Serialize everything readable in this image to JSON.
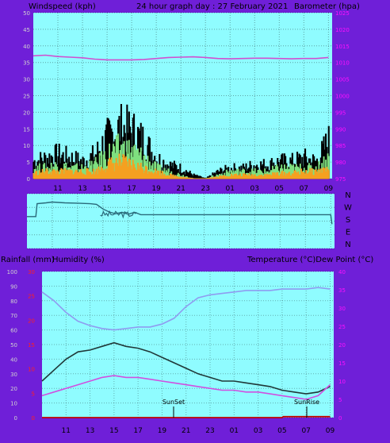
{
  "header": {
    "left_label": "Windspeed (kph)",
    "title": "24 hour graph day : 27 February 2021",
    "right_label": "Barometer (hpa)"
  },
  "bottom_header": {
    "left_label_1": "Rainfall (mm)",
    "left_label_2": "Humidity (%)",
    "right_label": "Temperature (°C)Dew Point (°C)"
  },
  "colors": {
    "background": "#6f1fd8",
    "plot": "#8ffcff",
    "wind_black": "#000000",
    "wind_green": "#7fe07f",
    "wind_orange": "#f5a020",
    "barometer": "#d050d0",
    "direction": "#2a6a7a",
    "humidity": "#8f9cf0",
    "temperature": "#203838",
    "dewpoint": "#d050e0",
    "rain": "#c00000",
    "left_tick": "#d0d0d0",
    "right_tick": "#ff10ff",
    "red_tick": "#ff2020"
  },
  "chart_data": [
    {
      "type": "line",
      "name_hint": "wind-and-barometer",
      "x_ticks": [
        "11",
        "13",
        "15",
        "17",
        "19",
        "21",
        "23",
        "01",
        "03",
        "05",
        "07",
        "09"
      ],
      "left_axis": {
        "label": "Windspeed (kph)",
        "ticks": [
          "0",
          "5",
          "10",
          "15",
          "20",
          "25",
          "30",
          "35",
          "40",
          "45",
          "50"
        ],
        "ylim": [
          0,
          50
        ]
      },
      "right_axis": {
        "label": "Barometer (hpa)",
        "ticks": [
          "975",
          "980",
          "985",
          "990",
          "995",
          "1000",
          "1005",
          "1010",
          "1015",
          "1020",
          "1025"
        ],
        "ylim": [
          975,
          1025
        ]
      },
      "series": [
        {
          "axis": "right",
          "x": [
            9,
            10,
            11,
            12,
            13,
            14,
            15,
            16,
            17,
            18,
            19,
            20,
            21,
            22,
            23,
            24,
            25,
            26,
            27,
            28,
            29,
            30,
            31,
            32,
            33
          ],
          "values": [
            1012,
            1012.2,
            1011.8,
            1011.6,
            1011.4,
            1011,
            1010.8,
            1010.8,
            1010.8,
            1010.9,
            1011.2,
            1011.5,
            1011.6,
            1011.7,
            1011.5,
            1011.2,
            1011.1,
            1011.2,
            1011.3,
            1011.3,
            1011.2,
            1011.1,
            1011.2,
            1011.2,
            1011.5
          ]
        },
        {
          "axis": "left",
          "x": [
            9,
            10,
            11,
            12,
            13,
            14,
            15,
            16,
            17,
            18,
            19,
            20,
            21,
            22,
            23,
            24,
            25,
            26,
            27,
            28,
            29,
            30,
            31,
            32,
            33
          ],
          "values": [
            5,
            6,
            7,
            6,
            5,
            7,
            12,
            15,
            14,
            11,
            6,
            4,
            3,
            1,
            0,
            2,
            3,
            3,
            4,
            4,
            5,
            5,
            6,
            5,
            11
          ]
        },
        {
          "axis": "left",
          "x": [
            9,
            10,
            11,
            12,
            13,
            14,
            15,
            16,
            17,
            18,
            19,
            20,
            21,
            22,
            23,
            24,
            25,
            26,
            27,
            28,
            29,
            30,
            31,
            32,
            33
          ],
          "values": [
            3,
            3,
            4,
            3,
            3,
            4,
            7,
            9,
            8,
            6,
            3,
            2,
            1,
            0,
            0,
            1,
            2,
            2,
            2,
            2,
            3,
            3,
            3,
            3,
            6
          ]
        },
        {
          "axis": "left",
          "x": [
            9,
            10,
            11,
            12,
            13,
            14,
            15,
            16,
            17,
            18,
            19,
            20,
            21,
            22,
            23,
            24,
            25,
            26,
            27,
            28,
            29,
            30,
            31,
            32,
            33
          ],
          "values": [
            1.5,
            2,
            2,
            2,
            2,
            2,
            4,
            5,
            4,
            3,
            2,
            1,
            0.5,
            0,
            0,
            0.5,
            1,
            1,
            1,
            1,
            1.5,
            1.5,
            2,
            2,
            3
          ]
        }
      ]
    },
    {
      "type": "line",
      "name_hint": "wind-direction",
      "right_labels": [
        "N",
        "W",
        "S",
        "E",
        "N"
      ],
      "ylim": [
        0,
        360
      ],
      "series": [
        {
          "x": [
            9,
            9.7,
            9.8,
            10.5,
            11,
            12,
            13,
            14,
            14.5,
            15,
            15.5,
            16,
            16.5,
            17,
            17.5,
            18,
            19,
            20,
            22,
            24,
            26,
            28,
            30,
            32,
            33,
            33.1
          ],
          "values": [
            210,
            210,
            295,
            300,
            305,
            300,
            298,
            294,
            290,
            260,
            240,
            228,
            238,
            225,
            238,
            222,
            222,
            222,
            222,
            222,
            222,
            222,
            222,
            222,
            222,
            160
          ]
        }
      ]
    },
    {
      "type": "line",
      "name_hint": "temp-humidity-rain",
      "x_ticks": [
        "11",
        "13",
        "15",
        "17",
        "19",
        "21",
        "23",
        "01",
        "03",
        "05",
        "07",
        "09"
      ],
      "left_axis": {
        "ticks": [
          "0",
          "10",
          "20",
          "30",
          "40",
          "50",
          "60",
          "70",
          "80",
          "90",
          "100"
        ],
        "ylim": [
          0,
          100
        ]
      },
      "left_red_ticks": [
        "0",
        "5",
        "10",
        "15",
        "20",
        "25",
        "30"
      ],
      "right_axis": {
        "ticks": [
          "0",
          "5",
          "10",
          "15",
          "20",
          "25",
          "30",
          "35",
          "40"
        ],
        "ylim": [
          0,
          40
        ]
      },
      "annotations": [
        "SunSet",
        "SunRise"
      ],
      "series": [
        {
          "axis": "left",
          "x": [
            9,
            10,
            11,
            12,
            13,
            14,
            15,
            16,
            17,
            18,
            19,
            20,
            21,
            22,
            23,
            24,
            25,
            26,
            27,
            28,
            29,
            30,
            31,
            32,
            33
          ],
          "values": [
            86,
            80,
            72,
            66,
            63,
            61,
            60,
            61,
            62,
            62,
            64,
            68,
            76,
            82,
            84,
            85,
            86,
            87,
            87,
            87,
            88,
            88,
            88,
            89,
            88
          ]
        },
        {
          "axis": "right",
          "x": [
            9,
            10,
            11,
            12,
            13,
            14,
            15,
            16,
            17,
            18,
            19,
            20,
            21,
            22,
            23,
            24,
            25,
            26,
            27,
            28,
            29,
            30,
            31,
            32,
            33
          ],
          "values": [
            10,
            13,
            16,
            18,
            18.5,
            19.5,
            20.5,
            19.5,
            19,
            18,
            16.5,
            15,
            13.5,
            12,
            11,
            10,
            10,
            9.5,
            9,
            8.5,
            7.5,
            7,
            6.5,
            7,
            8.5
          ]
        },
        {
          "axis": "right",
          "x": [
            9,
            10,
            11,
            12,
            13,
            14,
            15,
            16,
            17,
            18,
            19,
            20,
            21,
            22,
            23,
            24,
            25,
            26,
            27,
            28,
            29,
            30,
            31,
            32,
            33
          ],
          "values": [
            6,
            7,
            8,
            9,
            10,
            11,
            11.5,
            11,
            11,
            10.5,
            10,
            9.5,
            9,
            8.5,
            8,
            7.5,
            7.5,
            7,
            7,
            6.5,
            6,
            5.5,
            5,
            6,
            9
          ]
        },
        {
          "axis": "rain",
          "x": [
            9,
            29,
            29.1,
            33
          ],
          "values": [
            0,
            0,
            0.2,
            0.2
          ]
        }
      ]
    }
  ]
}
